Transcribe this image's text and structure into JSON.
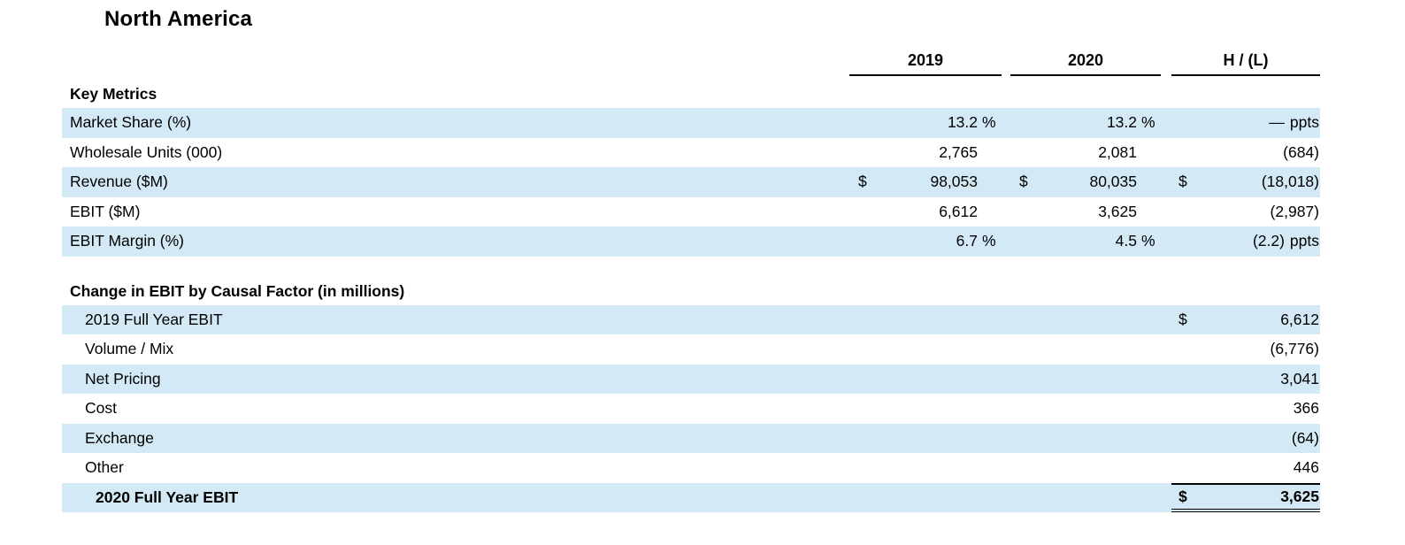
{
  "page": {
    "title": "North America"
  },
  "colors": {
    "row_highlight": "#d3eaf6"
  },
  "columns": {
    "c2019": "2019",
    "c2020": "2020",
    "hl": "H / (L)"
  },
  "key_metrics": {
    "title": "Key Metrics",
    "rows": [
      {
        "label": "Market Share (%)",
        "y2019": {
          "cur": "",
          "val": "13.2",
          "suf": "%"
        },
        "y2020": {
          "cur": "",
          "val": "13.2",
          "suf": "%"
        },
        "hl": {
          "cur": "",
          "val": "—",
          "suf": "ppts"
        }
      },
      {
        "label": "Wholesale Units (000)",
        "y2019": {
          "cur": "",
          "val": "2,765",
          "suf": ""
        },
        "y2020": {
          "cur": "",
          "val": "2,081",
          "suf": ""
        },
        "hl": {
          "cur": "",
          "val": "(684)",
          "suf": ""
        }
      },
      {
        "label": "Revenue ($M)",
        "y2019": {
          "cur": "$",
          "val": "98,053",
          "suf": ""
        },
        "y2020": {
          "cur": "$",
          "val": "80,035",
          "suf": ""
        },
        "hl": {
          "cur": "$",
          "val": "(18,018)",
          "suf": ""
        }
      },
      {
        "label": "EBIT ($M)",
        "y2019": {
          "cur": "",
          "val": "6,612",
          "suf": ""
        },
        "y2020": {
          "cur": "",
          "val": "3,625",
          "suf": ""
        },
        "hl": {
          "cur": "",
          "val": "(2,987)",
          "suf": ""
        }
      },
      {
        "label": "EBIT Margin (%)",
        "y2019": {
          "cur": "",
          "val": "6.7",
          "suf": "%"
        },
        "y2020": {
          "cur": "",
          "val": "4.5",
          "suf": "%"
        },
        "hl": {
          "cur": "",
          "val": "(2.2)",
          "suf": "ppts"
        }
      }
    ]
  },
  "causal": {
    "title": "Change in EBIT by Causal Factor (in millions)",
    "rows": [
      {
        "label": "2019 Full Year EBIT",
        "cur": "$",
        "val": "6,612"
      },
      {
        "label": "Volume / Mix",
        "cur": "",
        "val": "(6,776)"
      },
      {
        "label": "Net Pricing",
        "cur": "",
        "val": "3,041"
      },
      {
        "label": "Cost",
        "cur": "",
        "val": "366"
      },
      {
        "label": "Exchange",
        "cur": "",
        "val": "(64)"
      },
      {
        "label": "Other",
        "cur": "",
        "val": "446"
      },
      {
        "label": "2020 Full Year EBIT",
        "cur": "$",
        "val": "3,625"
      }
    ]
  }
}
